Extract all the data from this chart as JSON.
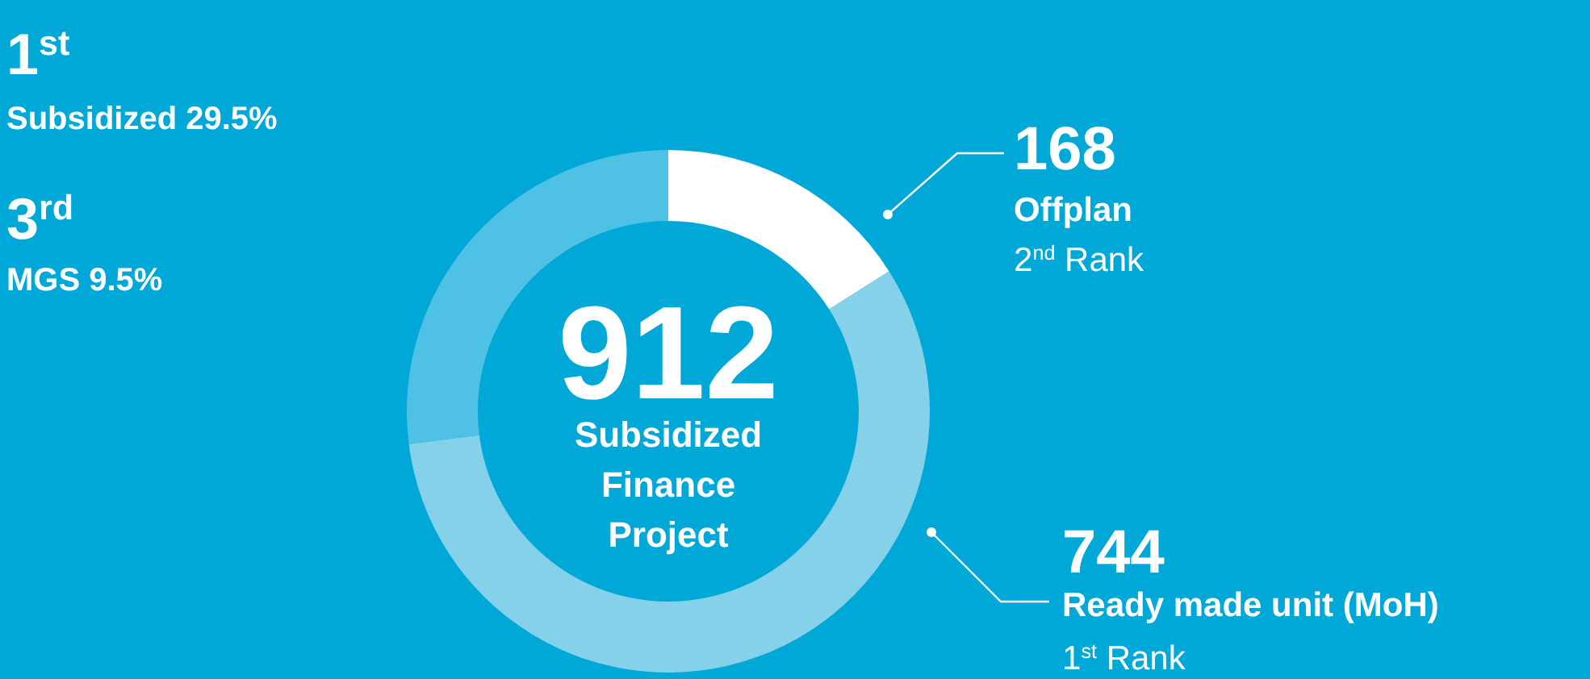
{
  "chart_data": {
    "type": "donut",
    "title": "912",
    "subtitle": "Subsidized Finance Project",
    "categories": [
      "Offplan",
      "Ready made unit (MoH)",
      null
    ],
    "values": [
      16,
      57,
      27
    ],
    "colors": [
      "#ffffff",
      "#85d1ea",
      "#4fc1e4"
    ],
    "annotations": [
      "1$^{st}$",
      "Subsidized 29.5%",
      "3$^{rd}$",
      "MGS 9.5%",
      "168",
      "2$^{nd}$ Rank",
      "744",
      "1$^{st}$ Rank"
    ]
  }
}
